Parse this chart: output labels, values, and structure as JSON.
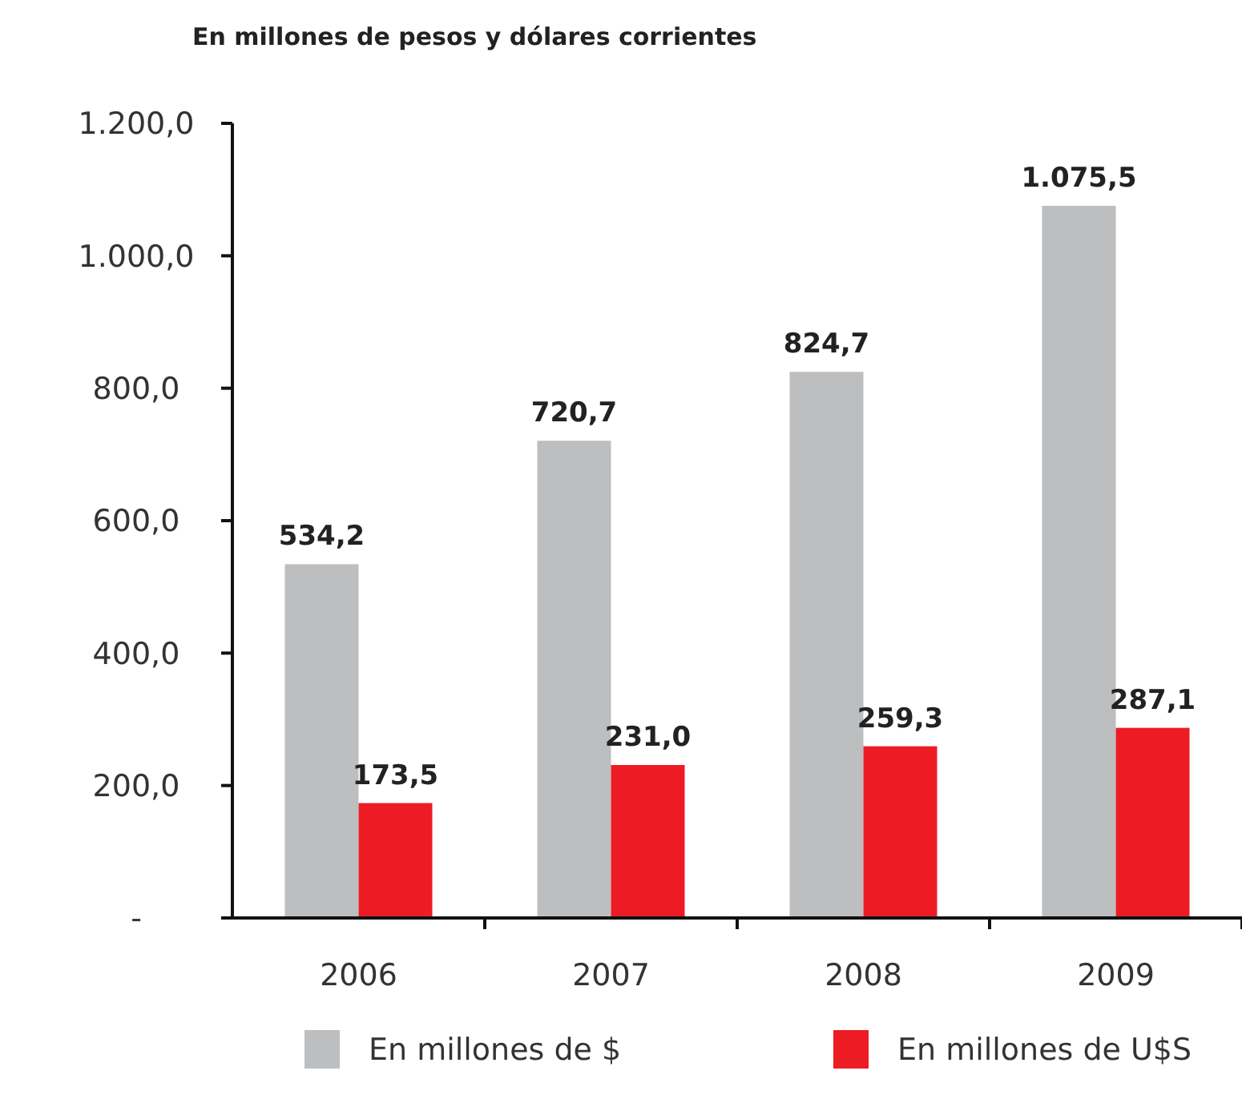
{
  "chart_data": {
    "type": "bar",
    "title": "En millones de pesos y dólares corrientes",
    "categories": [
      "2006",
      "2007",
      "2008",
      "2009"
    ],
    "series": [
      {
        "name": "En millones de $",
        "color": "#bcbec0",
        "values": [
          534.2,
          720.7,
          824.7,
          1075.5
        ],
        "value_labels": [
          "534,2",
          "720,7",
          "824,7",
          "1.075,5"
        ]
      },
      {
        "name": "En millones de U$S",
        "color": "#ed1c24",
        "values": [
          173.5,
          231.0,
          259.3,
          287.1
        ],
        "value_labels": [
          "173,5",
          "231,0",
          "259,3",
          "287,1"
        ]
      }
    ],
    "ylim": [
      0,
      1200
    ],
    "yticks": [
      {
        "value": 0,
        "label": "-"
      },
      {
        "value": 200,
        "label": "200,0"
      },
      {
        "value": 400,
        "label": "400,0"
      },
      {
        "value": 600,
        "label": "600,0"
      },
      {
        "value": 800,
        "label": "800,0"
      },
      {
        "value": 1000,
        "label": "1.000,0"
      },
      {
        "value": 1200,
        "label": "1.200,0"
      }
    ],
    "grid": false,
    "legend": "bottom"
  }
}
